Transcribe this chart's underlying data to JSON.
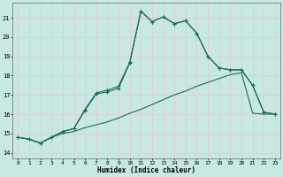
{
  "xlabel": "Humidex (Indice chaleur)",
  "bg_color": "#c8e8e4",
  "grid_color": "#e8c8cc",
  "line_color": "#1a6b5a",
  "xlim": [
    -0.5,
    23.5
  ],
  "ylim": [
    13.7,
    21.8
  ],
  "xticks": [
    0,
    1,
    2,
    3,
    4,
    5,
    6,
    7,
    8,
    9,
    10,
    11,
    12,
    13,
    14,
    15,
    16,
    17,
    18,
    19,
    20,
    21,
    22,
    23
  ],
  "yticks": [
    14,
    15,
    16,
    17,
    18,
    19,
    20,
    21
  ],
  "line1_x": [
    0,
    1,
    2,
    3,
    4,
    5,
    6,
    7,
    8,
    9,
    10,
    11,
    12,
    13,
    14,
    15,
    16,
    17,
    18,
    19,
    20,
    21,
    22,
    23
  ],
  "line1_y": [
    14.8,
    14.7,
    14.5,
    14.8,
    15.1,
    15.25,
    16.2,
    17.05,
    17.15,
    17.35,
    18.65,
    21.35,
    20.8,
    21.05,
    20.7,
    20.85,
    20.2,
    19.0,
    18.4,
    18.3,
    18.3,
    17.5,
    16.1,
    16.0
  ],
  "line2_x": [
    0,
    1,
    2,
    3,
    4,
    5,
    6,
    7,
    8,
    9,
    10,
    11,
    12,
    13,
    14,
    15,
    16,
    17,
    18,
    19,
    20,
    21,
    22,
    23
  ],
  "line2_y": [
    14.8,
    14.7,
    14.5,
    14.8,
    15.1,
    15.25,
    16.25,
    17.1,
    17.25,
    17.45,
    18.7,
    21.35,
    20.8,
    21.05,
    20.7,
    20.85,
    20.2,
    19.0,
    18.4,
    18.3,
    18.3,
    17.5,
    16.1,
    16.0
  ],
  "line3_x": [
    0,
    1,
    2,
    3,
    4,
    5,
    6,
    7,
    8,
    9,
    10,
    11,
    12,
    13,
    14,
    15,
    16,
    17,
    18,
    19,
    20,
    21,
    22,
    23
  ],
  "line3_y": [
    14.8,
    14.7,
    14.5,
    14.8,
    15.0,
    15.1,
    15.3,
    15.45,
    15.6,
    15.8,
    16.05,
    16.25,
    16.5,
    16.75,
    17.0,
    17.2,
    17.45,
    17.65,
    17.85,
    18.05,
    18.15,
    16.05,
    16.0,
    16.0
  ]
}
